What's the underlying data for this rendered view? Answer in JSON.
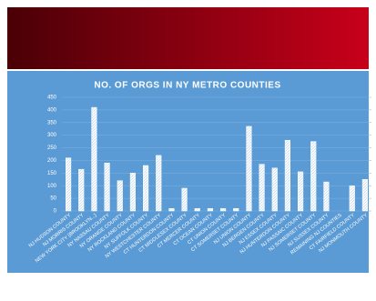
{
  "chart_data": {
    "type": "bar",
    "title": "NO. OF ORGS IN NY METRO COUNTIES",
    "categories": [
      "NJ HUDSON COUNTY",
      "NJ MORRIS COUNTY",
      "NEW YORK CITY (BROOKLYN...)",
      "NY NASSAU COUNTY",
      "NY ORANGE COUNTY",
      "NY ROCKLAND COUNTY",
      "NY SUFFOLK COUNTY",
      "NY WESTCHESTER COUNTY",
      "CT HUNTERDON COUNTY",
      "CT MIDDLESEX COUNTY",
      "CT MERCER COUNTY",
      "CT OCEAN COUNTY",
      "CT UNION COUNTY",
      "CT SOMERSET COUNTY",
      "NJ UNION COUNTY",
      "NJ BERGEN COUNTY",
      "NJ ESSEX COUNTY",
      "NJ HUNTERDON COUNTY",
      "NJ PASSAIC COUNTY",
      "NJ SOMERSET COUNTY",
      "NJ SUSSEX COUNTY",
      "REMAINING NJ COUNTIES",
      "CT FAIRFIELD COUNTY",
      "NJ MONMOUTH COUNTY"
    ],
    "values": [
      210,
      165,
      410,
      190,
      120,
      150,
      180,
      220,
      10,
      90,
      10,
      10,
      10,
      10,
      335,
      185,
      170,
      280,
      155,
      275,
      115,
      0,
      100,
      125
    ],
    "color": "#ffffff",
    "ylim": [
      0,
      450
    ],
    "yticks": [
      0,
      50,
      100,
      150,
      200,
      250,
      300,
      350,
      400,
      450
    ],
    "grid": true
  }
}
